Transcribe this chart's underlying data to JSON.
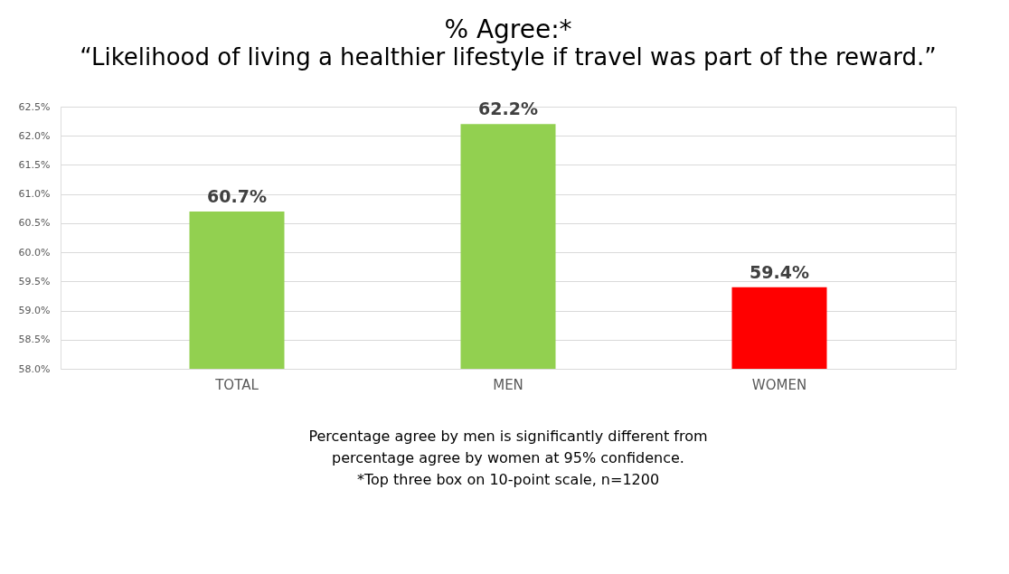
{
  "chart_data": {
    "type": "bar",
    "title": "% Agree:*",
    "subtitle": "“Likelihood of living a healthier lifestyle if travel was part of the reward.”",
    "categories": [
      "TOTAL",
      "MEN",
      "WOMEN"
    ],
    "values": [
      60.7,
      62.2,
      59.4
    ],
    "colors": [
      "#92d050",
      "#92d050",
      "#ff0000"
    ],
    "value_labels": [
      "60.7%",
      "62.2%",
      "59.4%"
    ],
    "ylim": [
      58,
      62.5
    ],
    "yticks": [
      {
        "value": 58,
        "label": "58.0%"
      },
      {
        "value": 58.5,
        "label": "58.5%"
      },
      {
        "value": 59,
        "label": "59.0%"
      },
      {
        "value": 59.5,
        "label": "59.5%"
      },
      {
        "value": 60,
        "label": "60.0%"
      },
      {
        "value": 60.5,
        "label": "60.5%"
      },
      {
        "value": 61,
        "label": "61.0%"
      },
      {
        "value": 61.5,
        "label": "61.5%"
      },
      {
        "value": 62,
        "label": "62.0%"
      },
      {
        "value": 62.5,
        "label": "62.5%"
      }
    ],
    "grid": "y",
    "annotations": [
      "Percentage agree by men is significantly different from",
      "percentage agree by women at 95% confidence.",
      "*Top three box on 10-point scale, n=1200"
    ]
  }
}
